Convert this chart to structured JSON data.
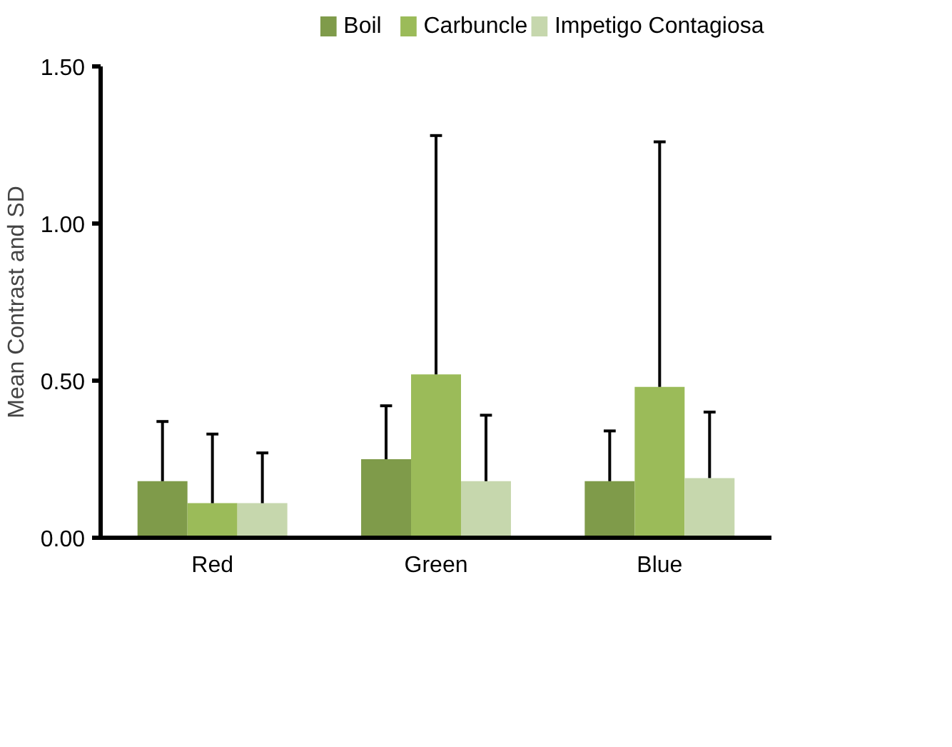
{
  "chart_data": {
    "type": "bar",
    "ylabel": "Mean Contrast and SD",
    "categories": [
      "Red",
      "Green",
      "Blue"
    ],
    "series": [
      {
        "name": "Boil",
        "color": "#7f9b4a",
        "values": [
          0.18,
          0.25,
          0.18
        ],
        "errors": [
          [
            0.18,
            0.37
          ],
          [
            0.25,
            0.42
          ],
          [
            0.18,
            0.34
          ]
        ]
      },
      {
        "name": "Carbuncle",
        "color": "#9bbb59",
        "values": [
          0.11,
          0.52,
          0.48
        ],
        "errors": [
          [
            0.11,
            0.33
          ],
          [
            0.52,
            1.28
          ],
          [
            0.48,
            1.26
          ]
        ]
      },
      {
        "name": "Impetigo Contagiosa",
        "color": "#c6d7ad",
        "values": [
          0.11,
          0.18,
          0.19
        ],
        "errors": [
          [
            0.11,
            0.27
          ],
          [
            0.18,
            0.39
          ],
          [
            0.19,
            0.4
          ]
        ]
      }
    ],
    "ylim": [
      0,
      1.5
    ],
    "yticks": [
      {
        "value": 0,
        "label": "0.00"
      },
      {
        "value": 0.5,
        "label": "0.50"
      },
      {
        "value": 1,
        "label": "1.00"
      },
      {
        "value": 1.5,
        "label": "1.50"
      }
    ],
    "grid": false,
    "legend": "top"
  }
}
